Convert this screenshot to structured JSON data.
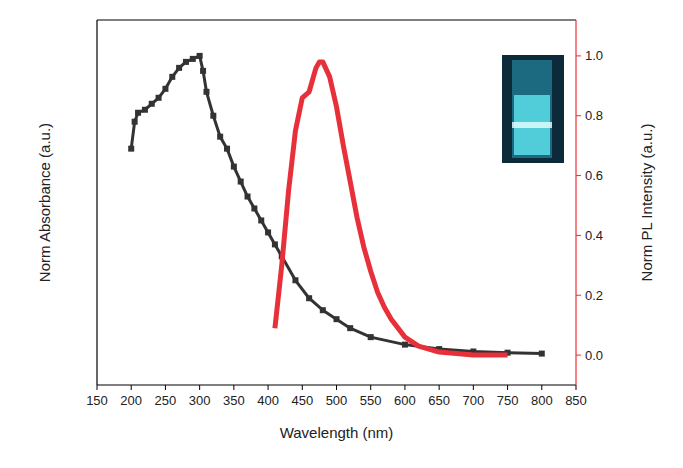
{
  "chart_data": {
    "type": "line",
    "x_label": "Wavelength (nm)",
    "y_label": "Norm Absorbance (a.u.)",
    "y2_label": "Norm PL Intensity (a.u.)",
    "xlim": [
      150,
      850
    ],
    "xticks": [
      150,
      200,
      250,
      300,
      350,
      400,
      450,
      500,
      550,
      600,
      650,
      700,
      750,
      800,
      850
    ],
    "ylim": [
      -0.1,
      1.12
    ],
    "y2lim": [
      -0.1,
      1.12
    ],
    "y2ticks": [
      {
        "value": 0,
        "label": "0.0"
      },
      {
        "value": 0.2,
        "label": "0.2"
      },
      {
        "value": 0.4,
        "label": "0.4"
      },
      {
        "value": 0.6,
        "label": "0.6"
      },
      {
        "value": 0.8,
        "label": "0.8"
      },
      {
        "value": 1.0,
        "label": "1.0"
      }
    ],
    "series": [
      {
        "color": "#333333",
        "marker": "square",
        "x": [
          200,
          205,
          210,
          220,
          230,
          240,
          250,
          260,
          270,
          280,
          290,
          300,
          305,
          310,
          320,
          330,
          340,
          350,
          360,
          370,
          380,
          390,
          400,
          410,
          420,
          440,
          460,
          480,
          500,
          520,
          550,
          600,
          650,
          700,
          750,
          800
        ],
        "values": [
          0.69,
          0.78,
          0.81,
          0.82,
          0.84,
          0.86,
          0.89,
          0.93,
          0.96,
          0.98,
          0.99,
          1.0,
          0.95,
          0.88,
          0.8,
          0.73,
          0.69,
          0.63,
          0.58,
          0.53,
          0.49,
          0.45,
          0.41,
          0.37,
          0.33,
          0.25,
          0.19,
          0.15,
          0.12,
          0.09,
          0.06,
          0.035,
          0.02,
          0.012,
          0.008,
          0.005
        ]
      },
      {
        "color": "#e8303a",
        "axis": "y2",
        "x": [
          410,
          420,
          430,
          440,
          450,
          460,
          470,
          475,
          480,
          490,
          500,
          510,
          520,
          530,
          540,
          550,
          560,
          570,
          580,
          600,
          620,
          650,
          700,
          750
        ],
        "values": [
          0.09,
          0.3,
          0.55,
          0.75,
          0.86,
          0.88,
          0.96,
          0.98,
          0.98,
          0.93,
          0.83,
          0.7,
          0.58,
          0.46,
          0.36,
          0.28,
          0.21,
          0.16,
          0.12,
          0.06,
          0.03,
          0.01,
          0.0,
          0.0
        ]
      }
    ]
  }
}
